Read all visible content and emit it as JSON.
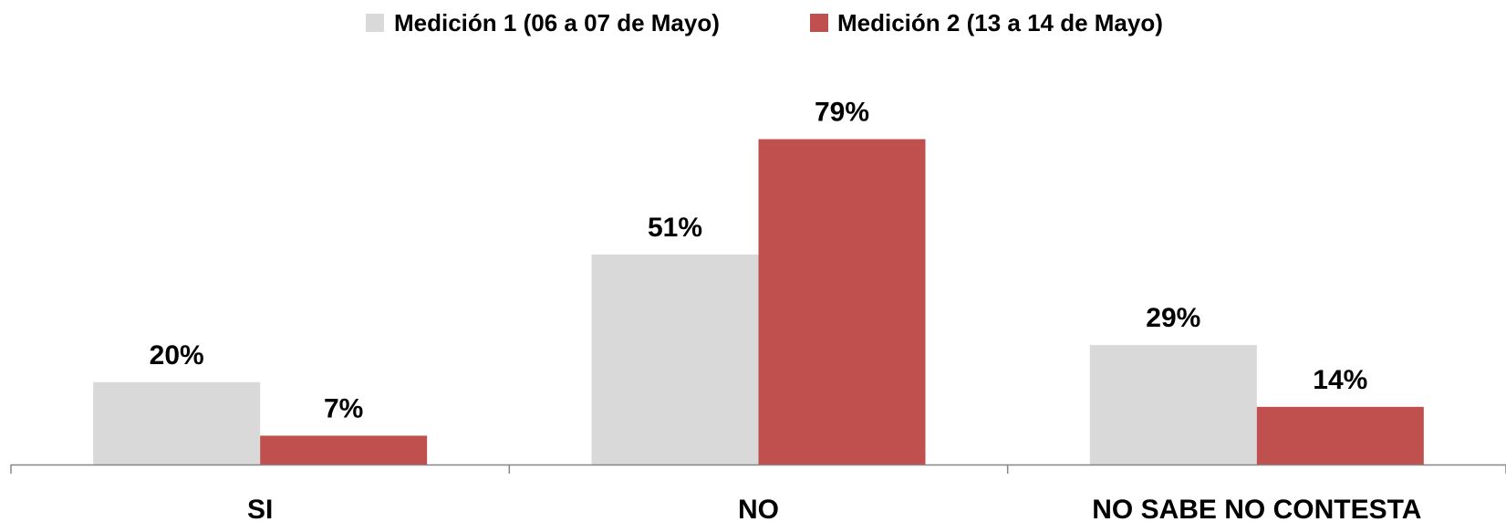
{
  "chart_data": {
    "type": "bar",
    "categories": [
      "SI",
      "NO",
      "NO SABE NO CONTESTA"
    ],
    "series": [
      {
        "name": "Medición 1 (06 a 07 de Mayo)",
        "values": [
          20,
          51,
          29
        ],
        "labels": [
          "20%",
          "51%",
          "29%"
        ],
        "color": "#d9d9d9"
      },
      {
        "name": "Medición 2 (13 a 14 de Mayo)",
        "values": [
          7,
          79,
          14
        ],
        "labels": [
          "7%",
          "79%",
          "14%"
        ],
        "color": "#c0504d"
      }
    ],
    "ylim": [
      0,
      100
    ],
    "grid": false,
    "legend": "top-center",
    "axis_color": "#868686"
  }
}
